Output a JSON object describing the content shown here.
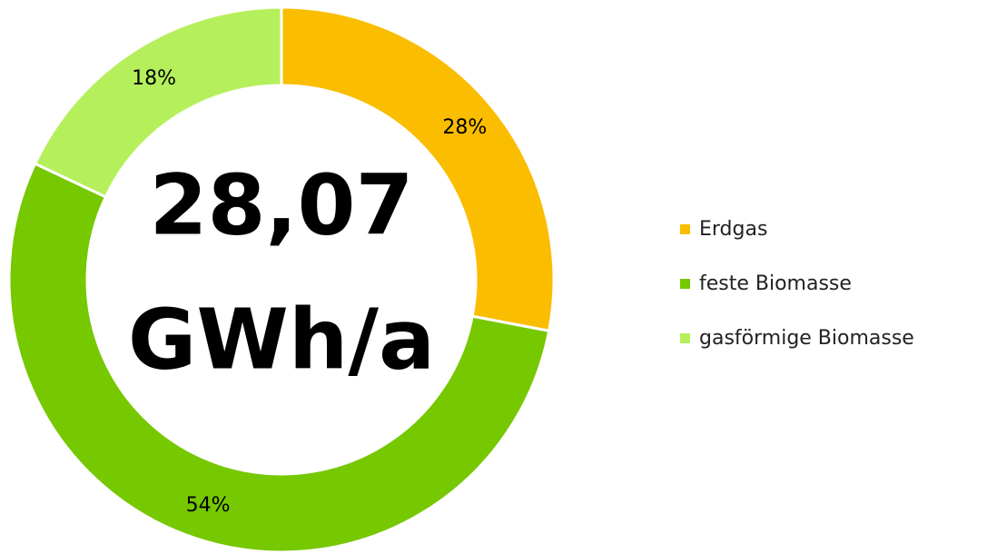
{
  "chart_data": {
    "type": "donut",
    "center_value": "28,07",
    "center_unit": "GWh/a",
    "categories": [
      "Erdgas",
      "feste Biomasse",
      "gasförmige Biomasse"
    ],
    "values": [
      28,
      54,
      18
    ],
    "value_labels": [
      "28%",
      "54%",
      "18%"
    ],
    "colors": [
      "#fbbd00",
      "#76c800",
      "#b5f05c"
    ],
    "legend": "right"
  }
}
